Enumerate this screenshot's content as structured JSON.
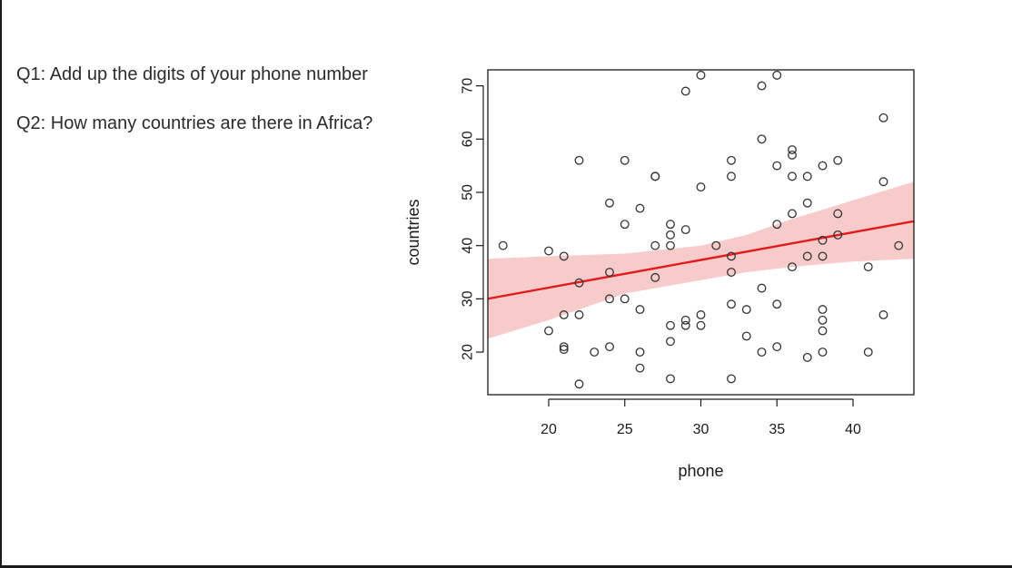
{
  "questions": {
    "q1": "Q1: Add up the digits of your phone number",
    "q2": "Q2: How many countries are there in Africa?"
  },
  "chart_data": {
    "type": "scatter",
    "xlabel": "phone",
    "ylabel": "countries",
    "xlim": [
      16,
      44
    ],
    "ylim": [
      12,
      73
    ],
    "x_ticks": [
      20,
      25,
      30,
      35,
      40
    ],
    "y_ticks": [
      20,
      30,
      40,
      50,
      60,
      70
    ],
    "regression": {
      "intercept": 21.7,
      "slope": 0.52,
      "x_range": [
        16,
        44
      ]
    },
    "confidence_band": {
      "x": [
        16,
        20,
        25,
        30,
        33,
        36,
        40,
        44
      ],
      "upper": [
        37.5,
        38,
        38.5,
        40,
        42,
        45,
        48.5,
        52
      ],
      "lower": [
        22.5,
        26,
        31,
        33.5,
        35,
        36,
        37,
        37.5
      ]
    },
    "colors": {
      "line": "#e31a1c",
      "band": "#f4a9a8",
      "points": "#333333"
    },
    "points": [
      [
        17,
        40
      ],
      [
        20,
        39
      ],
      [
        20,
        24
      ],
      [
        21,
        38
      ],
      [
        21,
        27
      ],
      [
        21,
        21
      ],
      [
        21,
        20.5
      ],
      [
        22,
        56
      ],
      [
        22,
        33
      ],
      [
        22,
        27
      ],
      [
        22,
        14
      ],
      [
        23,
        20
      ],
      [
        24,
        48
      ],
      [
        24,
        35
      ],
      [
        24,
        30
      ],
      [
        24,
        21
      ],
      [
        25,
        56
      ],
      [
        25,
        44
      ],
      [
        25,
        30
      ],
      [
        26,
        47
      ],
      [
        26,
        28
      ],
      [
        26,
        20
      ],
      [
        26,
        17
      ],
      [
        27,
        53
      ],
      [
        27,
        40
      ],
      [
        27,
        34
      ],
      [
        27,
        53
      ],
      [
        28,
        44
      ],
      [
        28,
        42
      ],
      [
        28,
        40
      ],
      [
        28,
        25
      ],
      [
        28,
        22
      ],
      [
        28,
        15
      ],
      [
        29,
        69
      ],
      [
        29,
        43
      ],
      [
        29,
        26
      ],
      [
        29,
        25
      ],
      [
        30,
        72
      ],
      [
        30,
        51
      ],
      [
        30,
        27
      ],
      [
        30,
        25
      ],
      [
        31,
        40
      ],
      [
        32,
        56
      ],
      [
        32,
        53
      ],
      [
        32,
        38
      ],
      [
        32,
        35
      ],
      [
        32,
        29
      ],
      [
        32,
        15
      ],
      [
        33,
        28
      ],
      [
        33,
        23
      ],
      [
        34,
        70
      ],
      [
        34,
        60
      ],
      [
        34,
        32
      ],
      [
        34,
        20
      ],
      [
        35,
        72
      ],
      [
        35,
        55
      ],
      [
        35,
        44
      ],
      [
        35,
        29
      ],
      [
        35,
        21
      ],
      [
        36,
        58
      ],
      [
        36,
        57
      ],
      [
        36,
        53
      ],
      [
        36,
        46
      ],
      [
        36,
        36
      ],
      [
        37,
        53
      ],
      [
        37,
        48
      ],
      [
        37,
        38
      ],
      [
        37,
        19
      ],
      [
        38,
        55
      ],
      [
        38,
        41
      ],
      [
        38,
        38
      ],
      [
        38,
        28
      ],
      [
        38,
        26
      ],
      [
        38,
        24
      ],
      [
        38,
        20
      ],
      [
        39,
        56
      ],
      [
        39,
        46
      ],
      [
        39,
        42
      ],
      [
        41,
        36
      ],
      [
        41,
        20
      ],
      [
        42,
        64
      ],
      [
        42,
        52
      ],
      [
        42,
        27
      ],
      [
        43,
        40
      ]
    ]
  }
}
